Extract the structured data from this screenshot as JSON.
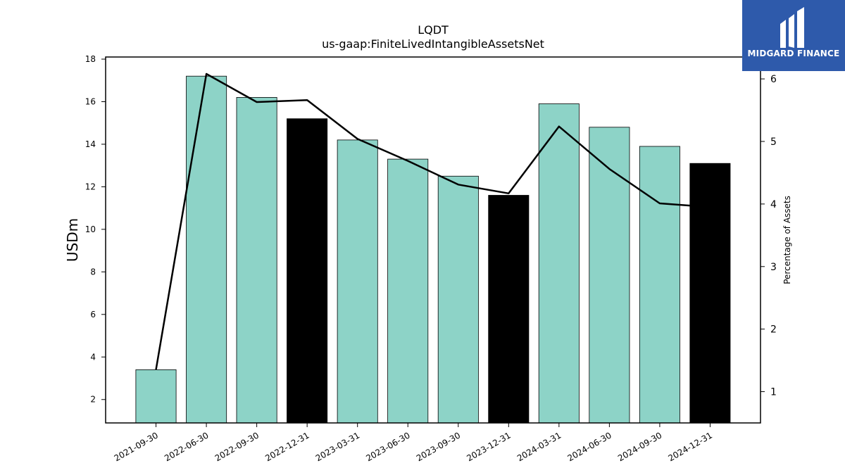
{
  "chart_data": {
    "type": "bar",
    "title": "LQDT",
    "subtitle": "us-gaap:FiniteLivedIntangibleAssetsNet",
    "ylabel": "USDm",
    "y2label": "Percentage of Assets",
    "categories": [
      "2021-09-30",
      "2022-06-30",
      "2022-09-30",
      "2022-12-31",
      "2023-03-31",
      "2023-06-30",
      "2023-09-30",
      "2023-12-31",
      "2024-03-31",
      "2024-06-30",
      "2024-09-30",
      "2024-12-31"
    ],
    "series": [
      {
        "values": [
          3.4,
          17.2,
          16.2,
          15.2,
          14.2,
          13.3,
          12.5,
          11.6,
          15.9,
          14.8,
          13.9,
          13.1
        ],
        "bar_colors": [
          "#8dd3c7",
          "#8dd3c7",
          "#8dd3c7",
          "#000000",
          "#8dd3c7",
          "#8dd3c7",
          "#8dd3c7",
          "#000000",
          "#8dd3c7",
          "#8dd3c7",
          "#8dd3c7",
          "#000000"
        ]
      },
      {
        "axis": "right",
        "type": "line",
        "values": [
          1.35,
          6.08,
          5.63,
          5.66,
          5.04,
          4.69,
          4.31,
          4.17,
          5.24,
          4.56,
          4.01,
          3.95
        ]
      }
    ],
    "ylim": [
      0.9,
      18.1
    ],
    "y2lim": [
      0.5,
      6.35
    ],
    "yticks": [
      2,
      4,
      6,
      8,
      10,
      12,
      14,
      16,
      18
    ],
    "y2ticks": [
      1,
      2,
      3,
      4,
      5,
      6
    ],
    "colors": {
      "bar_default": "#8dd3c7",
      "bar_highlight": "#000000",
      "line": "#000000"
    }
  },
  "logo": {
    "text": "MIDGARD FINANCE",
    "color": "#2e5aab"
  }
}
